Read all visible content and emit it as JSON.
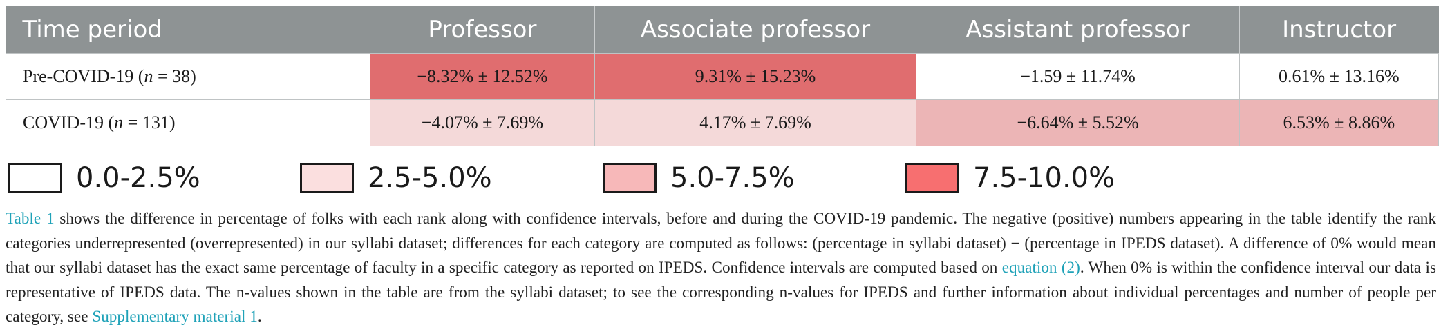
{
  "table": {
    "headers": [
      "Time period",
      "Professor",
      "Associate professor",
      "Assistant professor",
      "Instructor"
    ],
    "rows": [
      {
        "period": "Pre-COVID-19 (",
        "n_var": "n",
        "n_rest": " = 38)",
        "cells": [
          {
            "value": "−8.32% ± 12.52%",
            "band": 3
          },
          {
            "value": "9.31% ± 15.23%",
            "band": 3
          },
          {
            "value": "−1.59 ± 11.74%",
            "band": 0
          },
          {
            "value": "0.61% ± 13.16%",
            "band": 0
          }
        ]
      },
      {
        "period": "COVID-19 (",
        "n_var": "n",
        "n_rest": " = 131)",
        "cells": [
          {
            "value": "−4.07% ± 7.69%",
            "band": 1
          },
          {
            "value": "4.17% ± 7.69%",
            "band": 1
          },
          {
            "value": "−6.64% ± 5.52%",
            "band": 2
          },
          {
            "value": "6.53% ± 8.86%",
            "band": 2
          }
        ]
      }
    ]
  },
  "legend": [
    {
      "label": "0.0-2.5%",
      "color": "#ffffff"
    },
    {
      "label": "2.5-5.0%",
      "color": "#fbdfdf"
    },
    {
      "label": "5.0-7.5%",
      "color": "#f7b8b9"
    },
    {
      "label": "7.5-10.0%",
      "color": "#f76f70"
    }
  ],
  "caption": {
    "table_link": "Table 1",
    "part1": " shows the difference in percentage of folks with each rank along with confidence intervals, before and during the COVID-19 pandemic. The negative (positive) numbers appearing in the table identify the rank categories underrepresented (overrepresented) in our syllabi dataset; differences for each category are computed as follows: (percentage in syllabi dataset) − (percentage in IPEDS dataset). A difference of 0% would mean that our syllabi dataset has the exact same percentage of faculty in a specific category as reported on IPEDS. Confidence intervals are computed based on ",
    "equation_link": "equation (2)",
    "part2": ". When 0% is within the confidence interval our data is representative of IPEDS data. The n-values shown in the table are from the syllabi dataset; to see the corresponding n-values for IPEDS and further information about individual percentages and number of people per category, see ",
    "supp_link": "Supplementary material 1",
    "part3": "."
  },
  "colors": {
    "header_bg": "#8e9394",
    "link": "#1fa2b8"
  }
}
